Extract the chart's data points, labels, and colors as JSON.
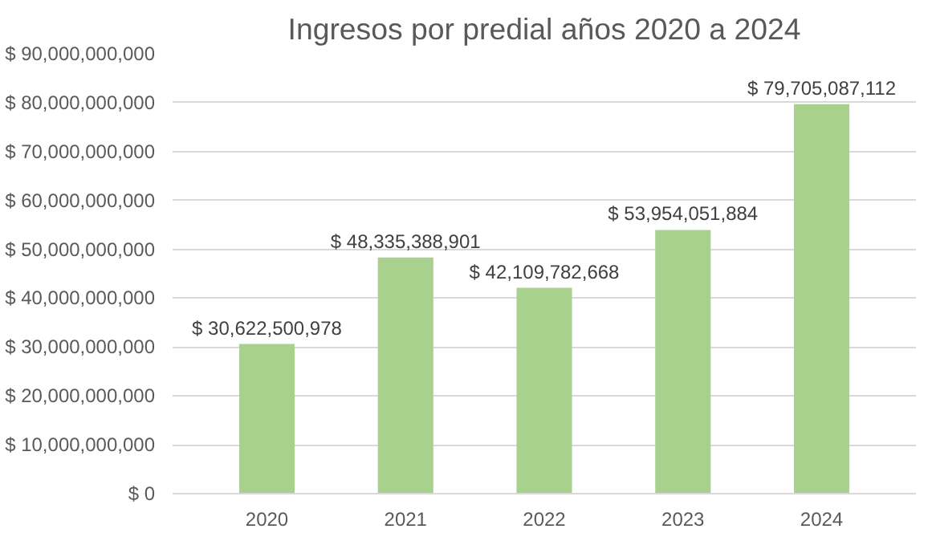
{
  "chart_data": {
    "type": "bar",
    "title": "Ingresos por predial años 2020 a 2024",
    "categories": [
      "2020",
      "2021",
      "2022",
      "2023",
      "2024"
    ],
    "values": [
      30622500978,
      48335388901,
      42109782668,
      53954051884,
      79705087112
    ],
    "value_labels": [
      "$ 30,622,500,978",
      "$ 48,335,388,901",
      "$ 42,109,782,668",
      "$ 53,954,051,884",
      "$ 79,705,087,112"
    ],
    "color": "#a9d18e",
    "ylim": [
      0,
      90000000000
    ],
    "yticks": [
      {
        "value": 0,
        "label": "$ 0"
      },
      {
        "value": 10000000000,
        "label": "$ 10,000,000,000"
      },
      {
        "value": 20000000000,
        "label": "$ 20,000,000,000"
      },
      {
        "value": 30000000000,
        "label": "$ 30,000,000,000"
      },
      {
        "value": 40000000000,
        "label": "$ 40,000,000,000"
      },
      {
        "value": 50000000000,
        "label": "$ 50,000,000,000"
      },
      {
        "value": 60000000000,
        "label": "$ 60,000,000,000"
      },
      {
        "value": 70000000000,
        "label": "$ 70,000,000,000"
      },
      {
        "value": 80000000000,
        "label": "$ 80,000,000,000"
      },
      {
        "value": 90000000000,
        "label": "$ 90,000,000,000"
      }
    ],
    "grid": "y"
  }
}
